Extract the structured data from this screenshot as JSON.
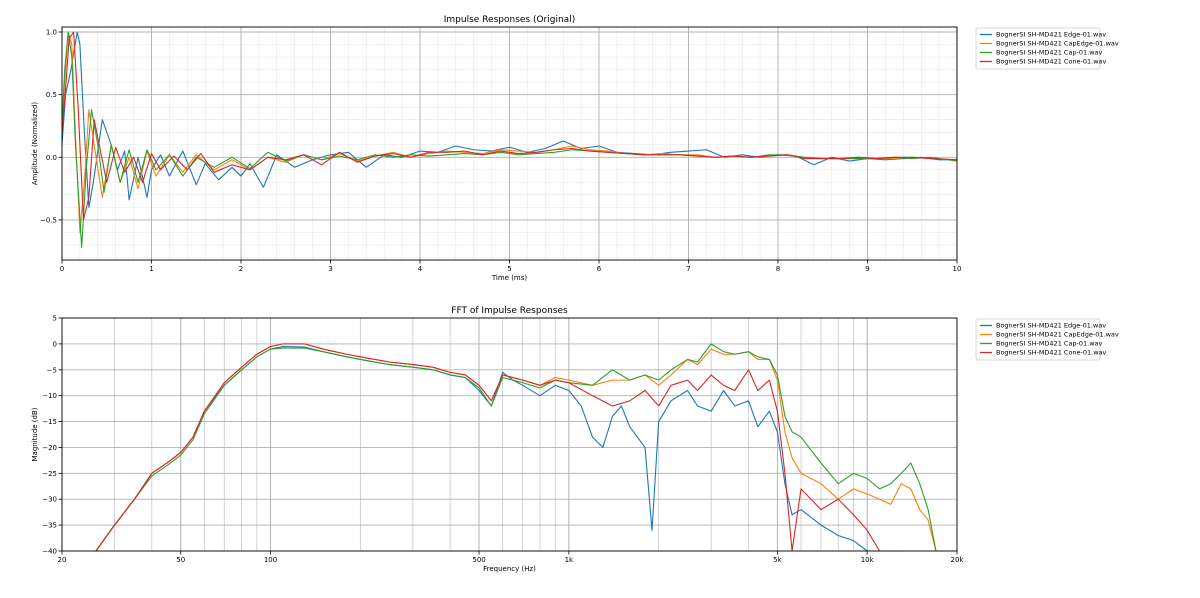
{
  "chart_data": [
    {
      "type": "line",
      "title": "Impulse Responses (Original)",
      "xlabel": "Time (ms)",
      "ylabel": "Amplitude (Normalized)",
      "xlim": [
        0,
        10
      ],
      "ylim": [
        -0.82,
        1.04
      ],
      "x_ticks": [
        0,
        1,
        2,
        3,
        4,
        5,
        6,
        7,
        8,
        9,
        10
      ],
      "y_ticks": [
        -0.5,
        0.0,
        0.5,
        1.0
      ],
      "y_tick_labels": [
        "−0.5",
        "0.0",
        "0.5",
        "1.0"
      ],
      "grid": true,
      "legend_position": "outside top-right",
      "series": [
        {
          "name": "BognerSI SH-MD421 Edge-01.wav",
          "color": "#1f77b4",
          "x": [
            0,
            0.04,
            0.1,
            0.17,
            0.2,
            0.25,
            0.3,
            0.35,
            0.45,
            0.55,
            0.62,
            0.7,
            0.75,
            0.85,
            0.95,
            1.0,
            1.1,
            1.2,
            1.35,
            1.5,
            1.6,
            1.75,
            1.9,
            2.0,
            2.1,
            2.25,
            2.4,
            2.6,
            2.8,
            3.0,
            3.2,
            3.4,
            3.6,
            3.8,
            4.0,
            4.2,
            4.4,
            4.6,
            4.8,
            5.0,
            5.2,
            5.4,
            5.6,
            5.8,
            6.0,
            6.2,
            6.4,
            6.6,
            6.8,
            7.0,
            7.2,
            7.4,
            7.6,
            7.8,
            8.0,
            8.2,
            8.4,
            8.6,
            8.8,
            9.0,
            9.2,
            9.4,
            9.6,
            9.8,
            10.0
          ],
          "y": [
            0.1,
            0.5,
            0.7,
            1.0,
            0.9,
            0.2,
            -0.4,
            -0.2,
            0.3,
            0.1,
            -0.1,
            0.05,
            -0.34,
            0.0,
            -0.32,
            -0.1,
            0.02,
            -0.15,
            0.05,
            -0.22,
            -0.05,
            -0.18,
            -0.08,
            -0.15,
            -0.05,
            -0.24,
            0.02,
            -0.08,
            -0.02,
            0.02,
            0.04,
            -0.08,
            0.02,
            0.0,
            0.05,
            0.04,
            0.09,
            0.06,
            0.05,
            0.08,
            0.04,
            0.07,
            0.13,
            0.07,
            0.09,
            0.04,
            0.03,
            0.02,
            0.04,
            0.05,
            0.06,
            0.0,
            0.02,
            0.0,
            0.02,
            0.01,
            -0.06,
            0.0,
            -0.03,
            -0.01,
            -0.02,
            -0.01,
            0.0,
            -0.02,
            -0.02
          ]
        },
        {
          "name": "BognerSI SH-MD421 CapEdge-01.wav",
          "color": "#ff7f0e",
          "x": [
            0,
            0.03,
            0.07,
            0.11,
            0.15,
            0.2,
            0.25,
            0.3,
            0.37,
            0.45,
            0.55,
            0.65,
            0.75,
            0.85,
            0.95,
            1.05,
            1.2,
            1.35,
            1.5,
            1.7,
            1.9,
            2.1,
            2.3,
            2.5,
            2.7,
            2.9,
            3.1,
            3.3,
            3.5,
            3.7,
            3.9,
            4.1,
            4.3,
            4.5,
            4.7,
            4.9,
            5.1,
            5.3,
            5.5,
            5.7,
            5.9,
            6.1,
            6.3,
            6.5,
            6.7,
            6.9,
            7.1,
            7.3,
            7.5,
            7.7,
            7.9,
            8.1,
            8.3,
            8.5,
            8.7,
            8.9,
            9.1,
            9.3,
            9.5,
            9.7,
            10.0
          ],
          "y": [
            0.2,
            0.6,
            1.0,
            0.9,
            0.2,
            -0.6,
            -0.2,
            0.38,
            0.05,
            -0.32,
            0.1,
            -0.2,
            0.0,
            -0.25,
            0.05,
            -0.15,
            0.02,
            -0.12,
            0.02,
            -0.1,
            -0.02,
            -0.1,
            0.0,
            -0.04,
            0.02,
            -0.02,
            0.03,
            -0.03,
            0.01,
            0.04,
            0.0,
            0.03,
            0.05,
            0.04,
            0.03,
            0.06,
            0.05,
            0.04,
            0.06,
            0.09,
            0.06,
            0.05,
            0.03,
            0.02,
            0.03,
            0.02,
            0.02,
            0.0,
            0.01,
            0.0,
            0.01,
            0.02,
            -0.01,
            -0.01,
            -0.01,
            -0.01,
            -0.01,
            -0.01,
            0.0,
            -0.01,
            -0.02
          ]
        },
        {
          "name": "BognerSI SH-MD421 Cap-01.wav",
          "color": "#2ca02c",
          "x": [
            0,
            0.03,
            0.07,
            0.11,
            0.15,
            0.22,
            0.27,
            0.33,
            0.4,
            0.47,
            0.55,
            0.65,
            0.75,
            0.85,
            0.95,
            1.05,
            1.2,
            1.35,
            1.5,
            1.7,
            1.9,
            2.1,
            2.3,
            2.5,
            2.7,
            2.9,
            3.1,
            3.3,
            3.5,
            3.7,
            3.9,
            4.1,
            4.3,
            4.5,
            4.7,
            4.9,
            5.1,
            5.3,
            5.5,
            5.7,
            5.9,
            6.1,
            6.3,
            6.5,
            6.7,
            6.9,
            7.1,
            7.3,
            7.5,
            7.7,
            7.9,
            8.1,
            8.3,
            8.5,
            8.7,
            8.9,
            9.1,
            9.3,
            9.5,
            9.7,
            10.0
          ],
          "y": [
            0.25,
            0.7,
            1.0,
            0.8,
            0.1,
            -0.72,
            -0.1,
            0.38,
            0.1,
            -0.28,
            0.1,
            -0.2,
            0.06,
            -0.2,
            0.06,
            -0.1,
            0.02,
            -0.15,
            0.0,
            -0.08,
            0.0,
            -0.09,
            0.04,
            -0.03,
            0.02,
            -0.02,
            0.01,
            -0.02,
            0.02,
            0.0,
            0.02,
            0.01,
            0.02,
            0.03,
            0.02,
            0.04,
            0.02,
            0.03,
            0.04,
            0.06,
            0.05,
            0.04,
            0.03,
            0.02,
            0.02,
            0.02,
            0.01,
            0.0,
            0.01,
            0.0,
            0.02,
            0.02,
            0.0,
            -0.01,
            -0.01,
            -0.01,
            -0.01,
            0.0,
            -0.01,
            0.0,
            -0.03
          ]
        },
        {
          "name": "BognerSI SH-MD421 Cone-01.wav",
          "color": "#d62728",
          "x": [
            0,
            0.04,
            0.08,
            0.13,
            0.18,
            0.24,
            0.3,
            0.36,
            0.43,
            0.5,
            0.6,
            0.7,
            0.8,
            0.9,
            1.0,
            1.1,
            1.25,
            1.4,
            1.55,
            1.7,
            1.9,
            2.1,
            2.3,
            2.5,
            2.7,
            2.9,
            3.1,
            3.3,
            3.5,
            3.7,
            3.9,
            4.1,
            4.3,
            4.5,
            4.7,
            4.9,
            5.1,
            5.3,
            5.5,
            5.7,
            5.9,
            6.1,
            6.3,
            6.5,
            6.7,
            6.9,
            7.1,
            7.3,
            7.5,
            7.7,
            7.9,
            8.1,
            8.3,
            8.5,
            8.7,
            8.9,
            9.1,
            9.3,
            9.5,
            9.7,
            10.0
          ],
          "y": [
            0.2,
            0.55,
            0.95,
            1.0,
            0.4,
            -0.5,
            -0.32,
            0.3,
            0.05,
            -0.2,
            0.08,
            -0.12,
            0.0,
            -0.2,
            0.03,
            -0.1,
            0.01,
            -0.1,
            0.03,
            -0.12,
            -0.06,
            -0.1,
            0.0,
            -0.02,
            0.02,
            -0.06,
            0.04,
            -0.04,
            0.01,
            0.03,
            0.0,
            0.04,
            0.04,
            0.05,
            0.02,
            0.05,
            0.03,
            0.04,
            0.06,
            0.07,
            0.05,
            0.04,
            0.03,
            0.02,
            0.02,
            0.02,
            0.01,
            0.0,
            0.01,
            0.0,
            0.01,
            0.02,
            -0.01,
            -0.01,
            -0.01,
            0.0,
            -0.01,
            0.0,
            0.0,
            -0.01,
            -0.02
          ]
        }
      ]
    },
    {
      "type": "line",
      "title": "FFT of Impulse Responses",
      "xlabel": "Frequency (Hz)",
      "ylabel": "Magnitude (dB)",
      "x_scale": "log",
      "xlim": [
        20,
        20000
      ],
      "ylim": [
        -40,
        5
      ],
      "x_ticks": [
        20,
        50,
        100,
        500,
        1000,
        5000,
        10000,
        20000
      ],
      "x_tick_labels": [
        "20",
        "50",
        "100",
        "500",
        "1k",
        "5k",
        "10k",
        "20k"
      ],
      "y_ticks": [
        -40,
        -35,
        -30,
        -25,
        -20,
        -15,
        -10,
        -5,
        0,
        5
      ],
      "y_tick_labels": [
        "−40",
        "−35",
        "−30",
        "−25",
        "−20",
        "−15",
        "−10",
        "−5",
        "0",
        "5"
      ],
      "grid": true,
      "legend_position": "outside top-right",
      "series": [
        {
          "name": "BognerSI SH-MD421 Edge-01.wav",
          "color": "#1f77b4",
          "x": [
            26,
            30,
            35,
            40,
            45,
            50,
            55,
            60,
            70,
            80,
            90,
            100,
            110,
            130,
            150,
            180,
            200,
            250,
            300,
            350,
            400,
            450,
            500,
            550,
            600,
            650,
            700,
            800,
            900,
            1000,
            1100,
            1200,
            1300,
            1400,
            1500,
            1600,
            1800,
            1900,
            2000,
            2200,
            2500,
            2700,
            3000,
            3300,
            3600,
            4000,
            4300,
            4700,
            5000,
            5300,
            5600,
            6000,
            7000,
            8000,
            9000,
            10000,
            11000,
            12000,
            13000
          ],
          "y": [
            -40,
            -35,
            -30,
            -25,
            -23,
            -21,
            -18,
            -13,
            -8,
            -5,
            -2.5,
            -1,
            -0.5,
            -0.6,
            -1.5,
            -2.5,
            -3,
            -4,
            -4.5,
            -5,
            -6,
            -6.5,
            -9,
            -12,
            -5.5,
            -7,
            -8,
            -10,
            -8,
            -9,
            -12,
            -18,
            -20,
            -14,
            -12,
            -16,
            -20,
            -36,
            -15,
            -11,
            -9,
            -12,
            -13,
            -9,
            -12,
            -11,
            -16,
            -13,
            -17,
            -27,
            -33,
            -32,
            -35,
            -37,
            -38,
            -40,
            -40,
            -40,
            -40
          ]
        },
        {
          "name": "BognerSI SH-MD421 CapEdge-01.wav",
          "color": "#ff7f0e",
          "x": [
            26,
            30,
            35,
            40,
            45,
            50,
            55,
            60,
            70,
            80,
            90,
            100,
            110,
            130,
            150,
            180,
            200,
            250,
            300,
            350,
            400,
            450,
            500,
            550,
            600,
            650,
            700,
            800,
            900,
            1000,
            1200,
            1400,
            1600,
            1800,
            2000,
            2200,
            2500,
            2700,
            3000,
            3300,
            3600,
            4000,
            4300,
            4700,
            5000,
            5300,
            5600,
            6000,
            7000,
            8000,
            9000,
            10000,
            11000,
            12000,
            13000,
            14000,
            15000,
            16000,
            17000
          ],
          "y": [
            -40,
            -35,
            -30,
            -25,
            -23,
            -21,
            -18,
            -13,
            -7.5,
            -4.5,
            -2,
            -0.5,
            0,
            0,
            -1,
            -2,
            -2.5,
            -3.5,
            -4,
            -4.5,
            -5.5,
            -6,
            -8,
            -11,
            -6,
            -6.5,
            -7,
            -8,
            -6.5,
            -7,
            -8,
            -7,
            -7,
            -6,
            -8,
            -6,
            -3,
            -4,
            -1,
            -2,
            -2,
            -1.5,
            -3,
            -3,
            -7,
            -17,
            -22,
            -25,
            -27,
            -30,
            -28,
            -29,
            -30,
            -31,
            -27,
            -28,
            -32,
            -34,
            -40
          ]
        },
        {
          "name": "BognerSI SH-MD421 Cap-01.wav",
          "color": "#2ca02c",
          "x": [
            26,
            30,
            35,
            40,
            45,
            50,
            55,
            60,
            70,
            80,
            90,
            100,
            110,
            130,
            150,
            180,
            200,
            250,
            300,
            350,
            400,
            450,
            500,
            550,
            600,
            650,
            700,
            800,
            900,
            1000,
            1200,
            1400,
            1600,
            1800,
            2000,
            2200,
            2500,
            2700,
            3000,
            3300,
            3600,
            4000,
            4300,
            4700,
            5000,
            5300,
            5600,
            6000,
            7000,
            8000,
            9000,
            10000,
            11000,
            12000,
            13000,
            14000,
            15000,
            16000,
            17000
          ],
          "y": [
            -40,
            -35,
            -30,
            -25.5,
            -23.5,
            -21.5,
            -18.5,
            -13.5,
            -8,
            -5,
            -2.5,
            -1,
            -0.8,
            -0.8,
            -1.5,
            -2.5,
            -3,
            -4,
            -4.5,
            -5,
            -6,
            -6.5,
            -8.5,
            -12,
            -6.5,
            -7,
            -7.5,
            -8.5,
            -7,
            -7.5,
            -8,
            -5,
            -7,
            -6,
            -7,
            -5,
            -3,
            -3.5,
            0,
            -1.5,
            -2,
            -1.5,
            -2.5,
            -3,
            -6,
            -14,
            -17,
            -18,
            -23,
            -27,
            -25,
            -26,
            -28,
            -27,
            -25,
            -23,
            -27,
            -32,
            -40
          ]
        },
        {
          "name": "BognerSI SH-MD421 Cone-01.wav",
          "color": "#d62728",
          "x": [
            26,
            30,
            35,
            40,
            45,
            50,
            55,
            60,
            70,
            80,
            90,
            100,
            110,
            130,
            150,
            180,
            200,
            250,
            300,
            350,
            400,
            450,
            500,
            550,
            600,
            650,
            700,
            800,
            900,
            1000,
            1200,
            1400,
            1600,
            1800,
            2000,
            2200,
            2500,
            2700,
            3000,
            3300,
            3600,
            4000,
            4300,
            4700,
            5000,
            5300,
            5600,
            6000,
            7000,
            8000,
            9000,
            10000,
            11000,
            12000,
            13000
          ],
          "y": [
            -40,
            -35,
            -30,
            -25,
            -23,
            -21,
            -18,
            -13,
            -7.5,
            -4.5,
            -2,
            -0.5,
            0,
            0,
            -1,
            -2,
            -2.5,
            -3.5,
            -4,
            -4.5,
            -5.5,
            -6,
            -8,
            -11,
            -6,
            -6.5,
            -7,
            -8,
            -7,
            -7.5,
            -10,
            -12,
            -11,
            -9,
            -12,
            -8,
            -7,
            -9,
            -6,
            -8,
            -9,
            -5,
            -9,
            -7,
            -13,
            -25,
            -40,
            -28,
            -32,
            -30,
            -33,
            -36,
            -40,
            -40,
            -40
          ]
        }
      ]
    }
  ]
}
